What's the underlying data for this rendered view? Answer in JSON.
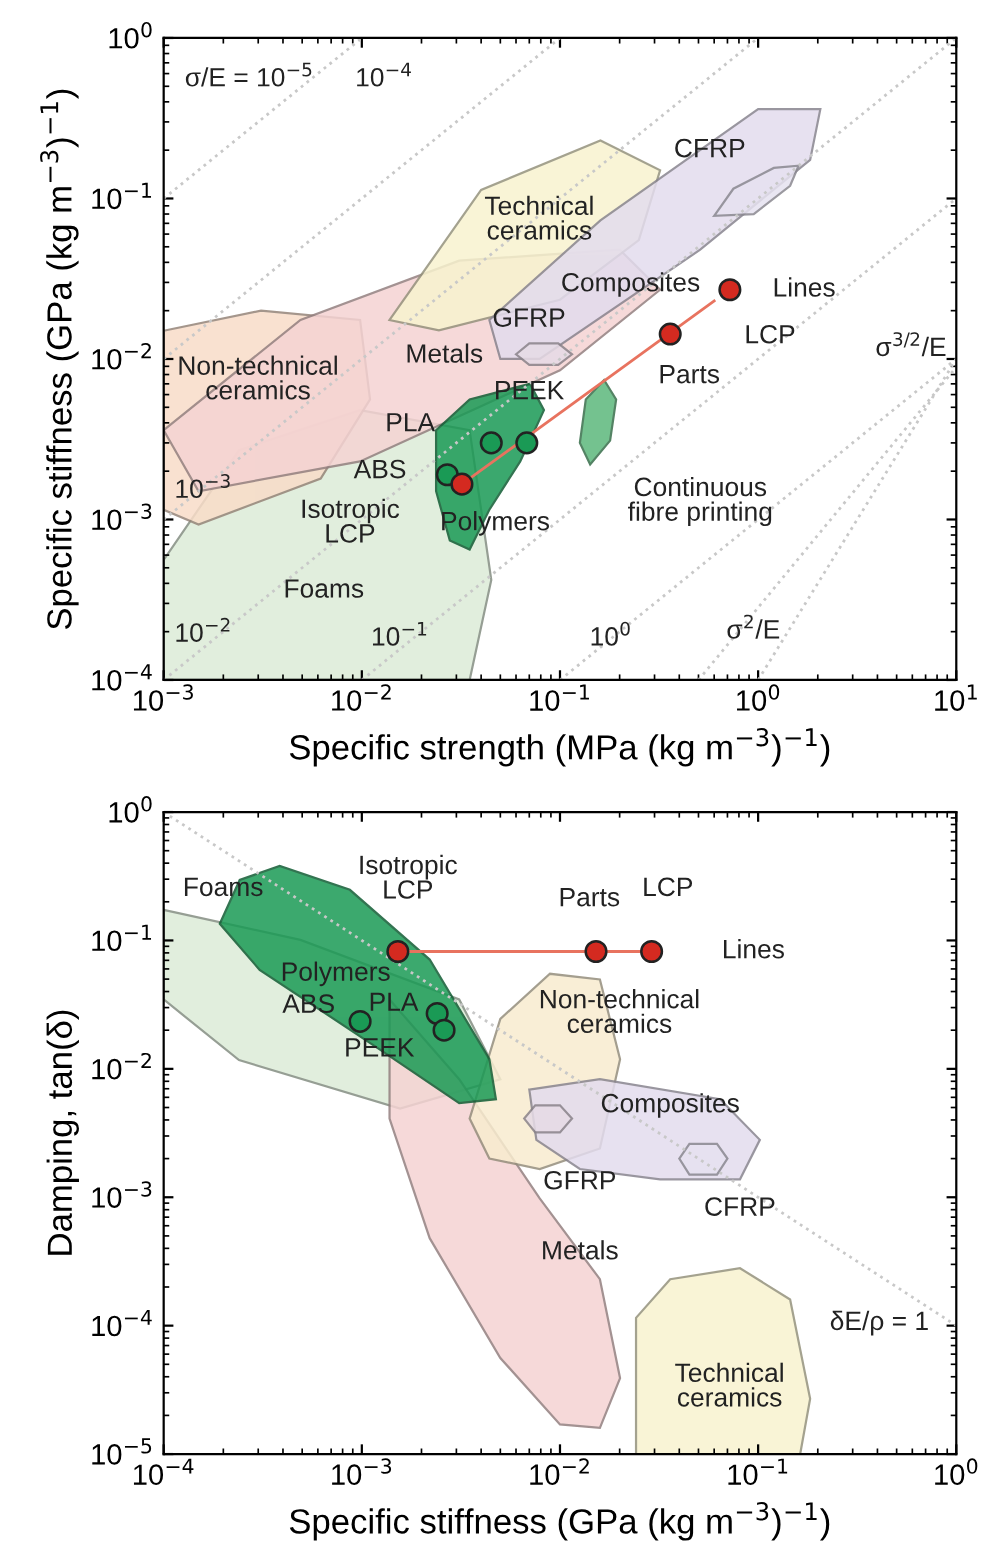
{
  "chart_data": [
    {
      "type": "scatter",
      "xlabel": "Specific strength (MPa (kg m$^{−3}$)$^{−1}$)",
      "ylabel": "Specific stiffness (GPa (kg m$^{−3}$)$^{−1}$)",
      "log": "xy",
      "xlim": [
        0.001,
        10
      ],
      "ylim": [
        0.0001,
        1
      ],
      "xticks": [
        {
          "value": 0.001,
          "label": "10$^{−3}$"
        },
        {
          "value": 0.01,
          "label": "10$^{−2}$"
        },
        {
          "value": 0.1,
          "label": "10$^{−1}$"
        },
        {
          "value": 1,
          "label": "10$^{0}$"
        },
        {
          "value": 10,
          "label": "10$^{1}$"
        }
      ],
      "yticks": [
        {
          "value": 0.0001,
          "label": "10$^{−4}$"
        },
        {
          "value": 0.001,
          "label": "10$^{−3}$"
        },
        {
          "value": 0.01,
          "label": "10$^{−2}$"
        },
        {
          "value": 0.1,
          "label": "10$^{−1}$"
        },
        {
          "value": 1,
          "label": "10$^{0}$"
        }
      ],
      "series": [
        {
          "type": "line",
          "color": "#c8c8c8",
          "line_style": "dotted",
          "x": [
            0.001,
            0.01
          ],
          "values": [
            0.1,
            1
          ]
        },
        {
          "type": "line",
          "color": "#c8c8c8",
          "line_style": "dotted",
          "x": [
            0.001,
            0.1
          ],
          "values": [
            0.01,
            1
          ]
        },
        {
          "type": "line",
          "color": "#c8c8c8",
          "line_style": "dotted",
          "x": [
            0.001,
            1
          ],
          "values": [
            0.001,
            1
          ]
        },
        {
          "type": "line",
          "color": "#c8c8c8",
          "line_style": "dotted",
          "x": [
            0.001,
            10
          ],
          "values": [
            0.0001,
            1
          ]
        },
        {
          "type": "line",
          "color": "#c8c8c8",
          "line_style": "dotted",
          "x": [
            0.01,
            10
          ],
          "values": [
            0.0001,
            0.1
          ]
        },
        {
          "type": "line",
          "color": "#c8c8c8",
          "line_style": "dotted",
          "x": [
            0.1,
            10
          ],
          "values": [
            0.0001,
            0.01
          ]
        },
        {
          "type": "line",
          "color": "#c8c8c8",
          "line_style": "dotted",
          "x": [
            0.5,
            10
          ],
          "values": [
            0.0001,
            0.0089
          ]
        },
        {
          "type": "line",
          "color": "#c8c8c8",
          "line_style": "dotted",
          "x": [
            1,
            10
          ],
          "values": [
            0.0001,
            0.01
          ]
        },
        {
          "type": "area",
          "color": "#dcecd8",
          "x": [
            0.001,
            0.001,
            0.0024,
            0.0098,
            0.035,
            0.045,
            0.035
          ],
          "values": [
            0.0001,
            0.00056,
            0.0027,
            0.0048,
            0.0036,
            0.00042,
            0.0001
          ]
        },
        {
          "type": "area",
          "color": "#f8dcc8",
          "x": [
            0.001,
            0.0031,
            0.0098,
            0.011,
            0.0062,
            0.0015,
            0.001
          ],
          "values": [
            0.015,
            0.02,
            0.0175,
            0.0056,
            0.0018,
            0.00093,
            0.00115
          ]
        },
        {
          "type": "area",
          "color": "#f5d3d3",
          "x": [
            0.001,
            0.0049,
            0.031,
            0.2,
            0.32,
            0.1,
            0.0098,
            0.0015
          ],
          "values": [
            0.0036,
            0.0175,
            0.041,
            0.048,
            0.027,
            0.0085,
            0.0023,
            0.0015
          ]
        },
        {
          "type": "area",
          "color": "#f8f3cf",
          "x": [
            0.0138,
            0.04,
            0.16,
            0.32,
            0.25,
            0.1,
            0.0245
          ],
          "values": [
            0.0175,
            0.113,
            0.23,
            0.15,
            0.055,
            0.0234,
            0.0151
          ]
        },
        {
          "type": "area",
          "color": "#e3dcee",
          "x": [
            0.044,
            0.16,
            1.0,
            2.06,
            1.83,
            0.51,
            0.079,
            0.05
          ],
          "values": [
            0.0175,
            0.073,
            0.36,
            0.36,
            0.174,
            0.048,
            0.01,
            0.01
          ]
        },
        {
          "type": "area",
          "color": "#1a9a55",
          "x": [
            0.0237,
            0.035,
            0.0705,
            0.083,
            0.063,
            0.044,
            0.035,
            0.0278,
            0.0237
          ],
          "values": [
            0.0036,
            0.0056,
            0.007,
            0.0048,
            0.0023,
            0.00115,
            0.00065,
            0.00074,
            0.0015
          ]
        },
        {
          "type": "area",
          "color": "#5cb87c",
          "x": [
            0.167,
            0.192,
            0.179,
            0.142,
            0.126,
            0.135
          ],
          "values": [
            0.0074,
            0.0056,
            0.0031,
            0.0022,
            0.003,
            0.0056
          ]
        },
        {
          "type": "area",
          "color": "#e6dbe6",
          "x": [
            0.06,
            0.07,
            0.098,
            0.115,
            0.098,
            0.07
          ],
          "values": [
            0.0107,
            0.0125,
            0.0125,
            0.0107,
            0.0092,
            0.0092
          ]
        },
        {
          "type": "area",
          "color": "#e6e2f0",
          "x": [
            0.6,
            0.75,
            1.2,
            1.6,
            1.45,
            0.95
          ],
          "values": [
            0.078,
            0.115,
            0.155,
            0.16,
            0.12,
            0.08
          ]
        },
        {
          "type": "line",
          "color": "#e8735f",
          "line_style": "solid",
          "x": [
            0.032,
            0.6
          ],
          "values": [
            0.00166,
            0.023
          ]
        },
        {
          "type": "scatter",
          "color": "#1a9a55",
          "marker": "circle",
          "x": [
            0.045,
            0.068,
            0.027
          ],
          "values": [
            0.003,
            0.003,
            0.0019
          ]
        },
        {
          "type": "scatter",
          "color": "#d42a20",
          "marker": "circle",
          "x": [
            0.032,
            0.36,
            0.72
          ],
          "values": [
            0.00166,
            0.0143,
            0.027
          ]
        }
      ],
      "annotations": [
        "σ/E = 10$^{−5}$",
        "10$^{−4}$",
        "10$^{−3}$",
        "10$^{−2}$",
        "10$^{−1}$",
        "10$^{0}$",
        "σ$^{3/2}$/E",
        "σ$^{2}$/E",
        "CFRP",
        "Technical\nceramics",
        "Composites",
        "Lines",
        "LCP",
        "Parts",
        "GFRP",
        "Metals",
        "Non-technical\nceramics",
        "PEEK",
        "PLA",
        "ABS",
        "Isotropic\nLCP",
        "Polymers",
        "Continuous\nfibre printing",
        "Foams"
      ]
    },
    {
      "type": "scatter",
      "xlabel": "Specific stiffness (GPa (kg m$^{−3}$)$^{−1}$)",
      "ylabel": "Damping, tan(δ)",
      "log": "xy",
      "xlim": [
        0.0001,
        1
      ],
      "ylim": [
        1e-05,
        1
      ],
      "xticks": [
        {
          "value": 0.0001,
          "label": "10$^{−4}$"
        },
        {
          "value": 0.001,
          "label": "10$^{−3}$"
        },
        {
          "value": 0.01,
          "label": "10$^{−2}$"
        },
        {
          "value": 0.1,
          "label": "10$^{−1}$"
        },
        {
          "value": 1,
          "label": "10$^{0}$"
        }
      ],
      "yticks": [
        {
          "value": 1e-05,
          "label": "10$^{−5}$"
        },
        {
          "value": 0.0001,
          "label": "10$^{−4}$"
        },
        {
          "value": 0.001,
          "label": "10$^{−3}$"
        },
        {
          "value": 0.01,
          "label": "10$^{−2}$"
        },
        {
          "value": 0.1,
          "label": "10$^{−1}$"
        },
        {
          "value": 1,
          "label": "10$^{0}$"
        }
      ],
      "series": [
        {
          "type": "line",
          "color": "#c8c8c8",
          "line_style": "dotted",
          "x": [
            0.0001,
            1
          ],
          "values": [
            1,
            0.0001
          ]
        },
        {
          "type": "area",
          "color": "#dcecd8",
          "x": [
            0.0001,
            0.00049,
            0.0031,
            0.005,
            0.00156,
            0.00024,
            0.0001
          ],
          "values": [
            0.173,
            0.101,
            0.0347,
            0.0083,
            0.0049,
            0.0117,
            0.0347
          ]
        },
        {
          "type": "area",
          "color": "#f5d3d3",
          "x": [
            0.00138,
            0.0031,
            0.0079,
            0.0159,
            0.0201,
            0.0159,
            0.01,
            0.005,
            0.0022,
            0.00138
          ],
          "values": [
            0.0347,
            0.0083,
            0.00098,
            0.00023,
            3.9e-05,
            1.6e-05,
            1.7e-05,
            5.6e-05,
            0.00048,
            0.0041
          ]
        },
        {
          "type": "area",
          "color": "#f8eccf",
          "x": [
            0.0035,
            0.005,
            0.0089,
            0.0159,
            0.0201,
            0.0159,
            0.0079,
            0.0044
          ],
          "values": [
            0.0041,
            0.0245,
            0.055,
            0.0497,
            0.0119,
            0.0024,
            0.00166,
            0.002
          ]
        },
        {
          "type": "area",
          "color": "#e3dcee",
          "x": [
            0.007,
            0.0159,
            0.0643,
            0.102,
            0.081,
            0.032,
            0.0126,
            0.0076
          ],
          "values": [
            0.0069,
            0.0083,
            0.0058,
            0.0028,
            0.00138,
            0.00138,
            0.00166,
            0.0028
          ]
        },
        {
          "type": "area",
          "color": "#f8f3cf",
          "x": [
            0.0242,
            0.0242,
            0.036,
            0.081,
            0.145,
            0.183,
            0.163
          ],
          "values": [
            1e-05,
            0.000115,
            0.00023,
            0.00028,
            0.00016,
            2.7e-05,
            1e-05
          ]
        },
        {
          "type": "area",
          "color": "#1a9a55",
          "x": [
            0.000192,
            0.000242,
            0.000385,
            0.00087,
            0.0022,
            0.0044,
            0.00475,
            0.0031,
            0.00123,
            0.000305
          ],
          "values": [
            0.135,
            0.296,
            0.381,
            0.248,
            0.071,
            0.0119,
            0.0058,
            0.0054,
            0.0142,
            0.059
          ]
        },
        {
          "type": "area",
          "color": "#e6dbe6",
          "x": [
            0.0066,
            0.0075,
            0.01,
            0.0115,
            0.01,
            0.0075
          ],
          "values": [
            0.0041,
            0.0052,
            0.0052,
            0.0041,
            0.0032,
            0.0032
          ]
        },
        {
          "type": "area",
          "color": "#e6e2f0",
          "x": [
            0.04,
            0.045,
            0.062,
            0.07,
            0.062,
            0.045
          ],
          "values": [
            0.002,
            0.0026,
            0.0026,
            0.002,
            0.0015,
            0.0015
          ]
        },
        {
          "type": "line",
          "color": "#e8735f",
          "line_style": "solid",
          "x": [
            0.00152,
            0.029
          ],
          "values": [
            0.082,
            0.082
          ]
        },
        {
          "type": "scatter",
          "color": "#1a9a55",
          "marker": "circle",
          "x": [
            0.00098,
            0.0024,
            0.0026
          ],
          "values": [
            0.0234,
            0.027,
            0.02
          ]
        },
        {
          "type": "scatter",
          "color": "#d42a20",
          "marker": "circle",
          "x": [
            0.00152,
            0.0152,
            0.029
          ],
          "values": [
            0.082,
            0.082,
            0.082
          ]
        }
      ],
      "annotations": [
        "Foams",
        "Isotropic\nLCP",
        "Parts",
        "LCP",
        "Lines",
        "Polymers",
        "ABS",
        "PLA",
        "PEEK",
        "Non-technical\nceramics",
        "Composites",
        "GFRP",
        "CFRP",
        "Metals",
        "Technical\nceramics",
        "δE/ρ = 1"
      ]
    }
  ]
}
